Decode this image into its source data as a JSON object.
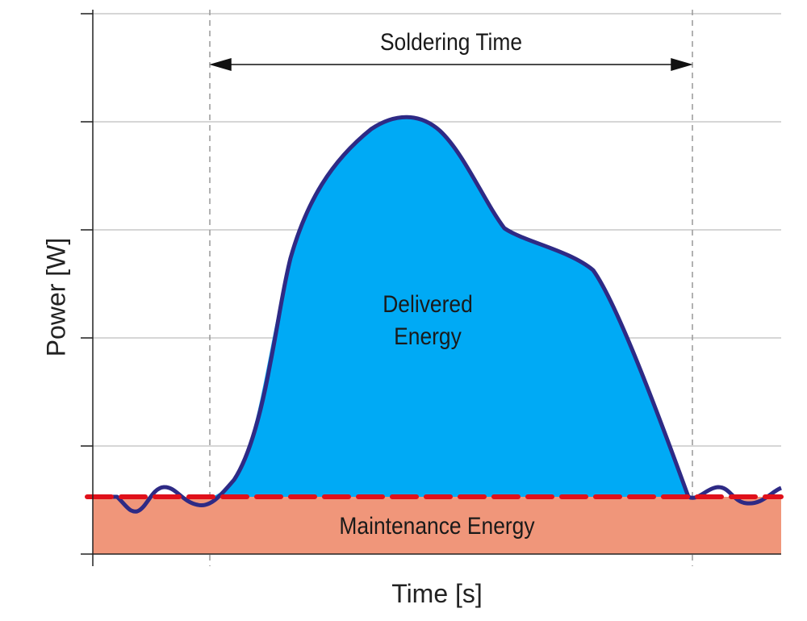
{
  "diagram": {
    "title": "Soldering Time",
    "region_delivered": {
      "line1": "Delivered",
      "line2": "Energy"
    },
    "region_maintenance": "Maintenance Energy",
    "xlabel": "Time [s]",
    "ylabel": "Power [W]"
  },
  "colors": {
    "delivered_fill": "#00aaf5",
    "curve": "#2e2a85",
    "maintenance_fill": "#f0967a",
    "maintenance_line": "#e0101a",
    "grid": "#bdbdbd"
  }
}
